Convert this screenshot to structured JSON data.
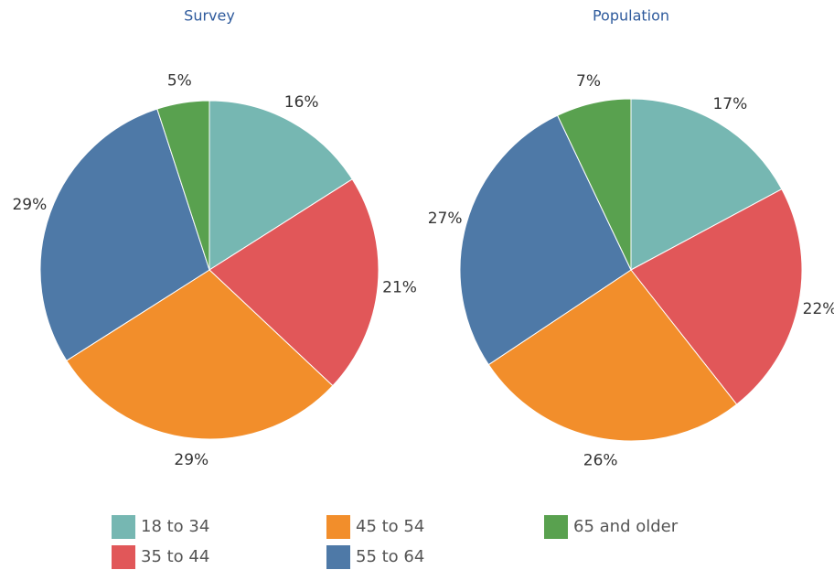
{
  "chart_data": [
    {
      "type": "pie",
      "title": "Survey",
      "categories": [
        "18 to 34",
        "35 to 44",
        "45 to 54",
        "55 to 64",
        "65 and older"
      ],
      "values": [
        16,
        21,
        29,
        29,
        5
      ],
      "value_labels": [
        "16%",
        "21%",
        "29%",
        "29%",
        "5%"
      ],
      "colors": [
        "#76b7b2",
        "#e15759",
        "#f28e2b",
        "#4e79a7",
        "#59a14f"
      ]
    },
    {
      "type": "pie",
      "title": "Population",
      "categories": [
        "18 to 34",
        "35 to 44",
        "45 to 54",
        "55 to 64",
        "65 and older"
      ],
      "values": [
        17,
        22,
        26,
        27,
        7
      ],
      "value_labels": [
        "17%",
        "22%",
        "26%",
        "27%",
        "7%"
      ],
      "colors": [
        "#76b7b2",
        "#e15759",
        "#f28e2b",
        "#4e79a7",
        "#59a14f"
      ]
    }
  ]
}
